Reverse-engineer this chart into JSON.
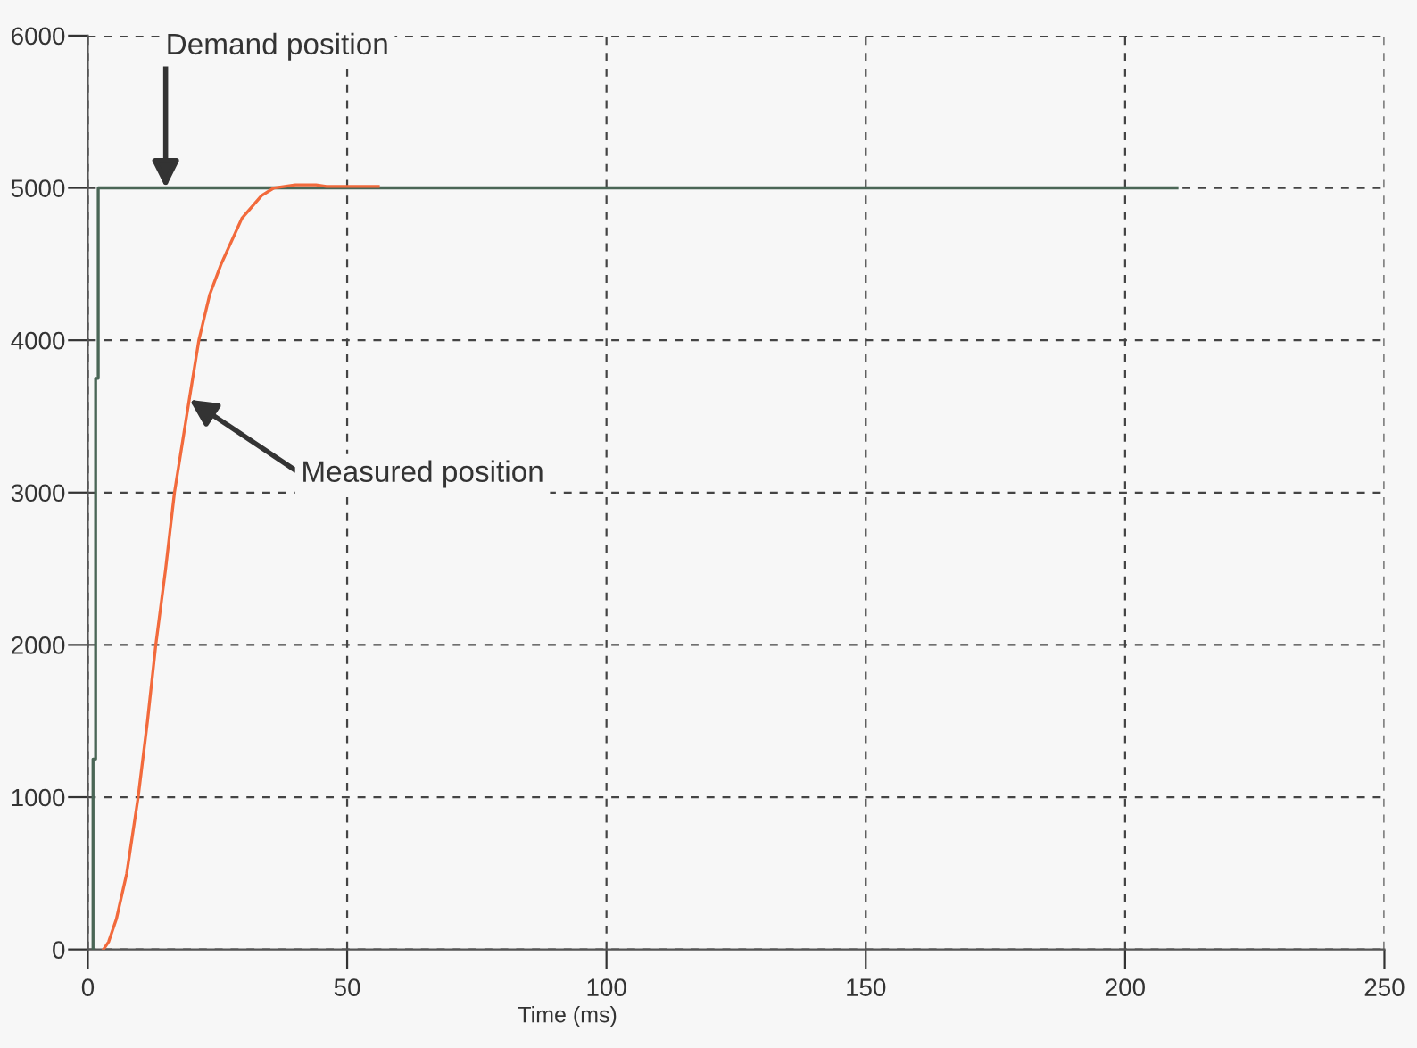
{
  "chart_data": {
    "type": "line",
    "xlabel": "Time (ms)",
    "series": [
      {
        "color": "#4a6656",
        "x": [
          1,
          1,
          1.5,
          1.5,
          2,
          2,
          210
        ],
        "values": [
          0,
          1250,
          1250,
          3750,
          3750,
          5000,
          5000
        ]
      },
      {
        "color": "#f26a3c",
        "x": [
          3,
          4,
          5.5,
          7.5,
          9.7,
          11.5,
          13.1,
          15,
          16.7,
          19.5,
          21.4,
          23.5,
          25.7,
          29.7,
          33.5,
          35.9,
          40,
          44,
          46,
          56
        ],
        "values": [
          0,
          50,
          200,
          500,
          1000,
          1500,
          2000,
          2500,
          3000,
          3600,
          4000,
          4300,
          4500,
          4800,
          4950,
          5000,
          5020,
          5020,
          5010,
          5010
        ]
      }
    ],
    "annotations": [
      {
        "text": "Demand position",
        "x": 15,
        "y": 5000
      },
      {
        "text": "Measured position",
        "x": 19.6,
        "y": 3610
      }
    ],
    "xlim": [
      0,
      250
    ],
    "xticks": [
      0,
      50,
      100,
      150,
      200,
      250
    ],
    "ylim": [
      0,
      6000
    ],
    "yticks": [
      0,
      1000,
      2000,
      3000,
      4000,
      5000,
      6000
    ],
    "grid": true,
    "line_style": "solid",
    "marker": "none"
  }
}
